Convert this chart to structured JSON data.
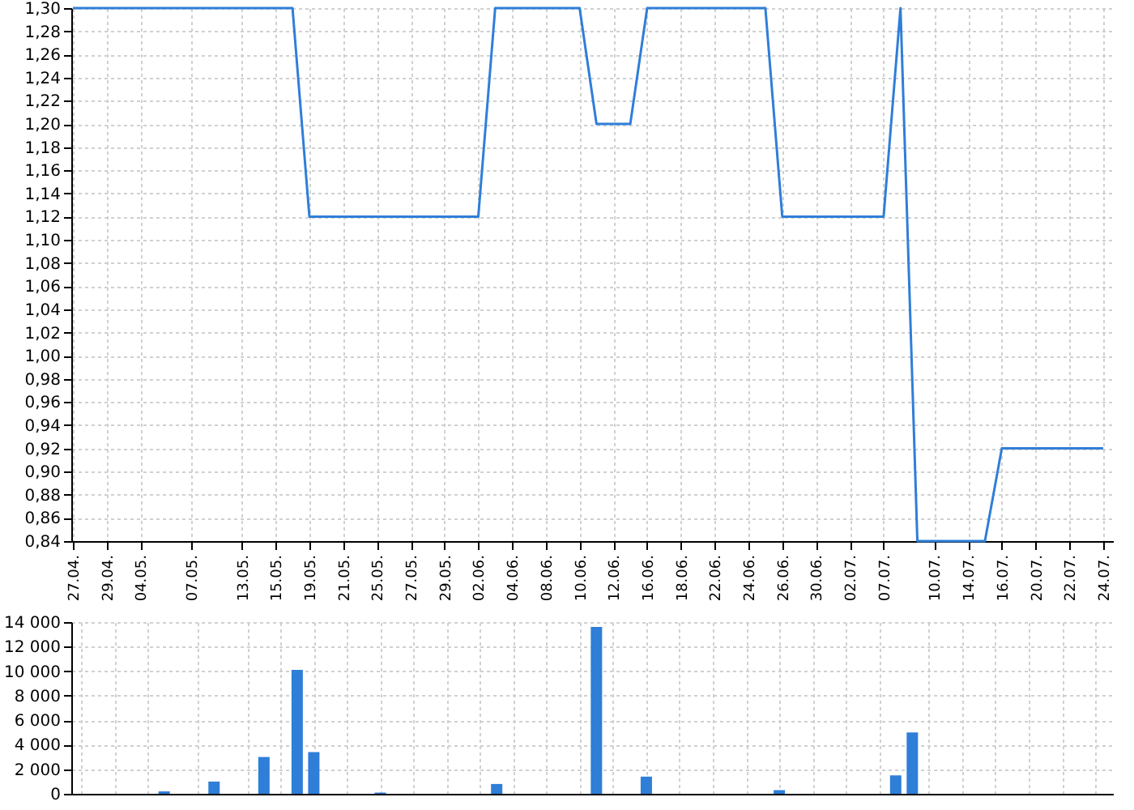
{
  "chart_data": [
    {
      "type": "line",
      "categories": [
        "27.04.",
        null,
        "29.04.",
        null,
        "04.05.",
        null,
        null,
        "07.05.",
        null,
        null,
        "13.05.",
        null,
        "15.05.",
        null,
        "19.05.",
        null,
        "21.05.",
        null,
        "25.05.",
        null,
        "27.05.",
        null,
        "29.05.",
        null,
        "02.06.",
        null,
        "04.06.",
        null,
        "08.06.",
        null,
        "10.06.",
        null,
        "12.06.",
        null,
        "16.06.",
        null,
        "18.06.",
        null,
        "22.06.",
        null,
        "24.06.",
        null,
        "26.06.",
        null,
        "30.06.",
        null,
        "02.07.",
        null,
        "07.07.",
        null,
        null,
        "10.07.",
        null,
        "14.07.",
        null,
        "16.07.",
        null,
        "20.07.",
        null,
        "22.07.",
        null,
        "24.07."
      ],
      "series": [
        {
          "color": "#2f7ed8",
          "values": [
            1.3,
            1.3,
            1.3,
            1.3,
            1.3,
            1.3,
            1.3,
            1.3,
            1.3,
            1.3,
            1.3,
            1.3,
            1.3,
            1.3,
            1.12,
            1.12,
            1.12,
            1.12,
            1.12,
            1.12,
            1.12,
            1.12,
            1.12,
            1.12,
            1.12,
            1.3,
            1.3,
            1.3,
            1.3,
            1.3,
            1.3,
            1.2,
            1.2,
            1.2,
            1.3,
            1.3,
            1.3,
            1.3,
            1.3,
            1.3,
            1.3,
            1.3,
            1.12,
            1.12,
            1.12,
            1.12,
            1.12,
            1.12,
            1.12,
            1.3,
            0.84,
            0.84,
            0.84,
            0.84,
            0.84,
            0.92,
            0.92,
            0.92,
            0.92,
            0.92,
            0.92,
            0.92
          ]
        }
      ],
      "ylim": [
        0.84,
        1.3
      ],
      "yticks": [
        {
          "value": 0.84,
          "label": "0,84"
        },
        {
          "value": 0.86,
          "label": "0,86"
        },
        {
          "value": 0.88,
          "label": "0,88"
        },
        {
          "value": 0.9,
          "label": "0,90"
        },
        {
          "value": 0.92,
          "label": "0,92"
        },
        {
          "value": 0.94,
          "label": "0,94"
        },
        {
          "value": 0.96,
          "label": "0,96"
        },
        {
          "value": 0.98,
          "label": "0,98"
        },
        {
          "value": 1.0,
          "label": "1,00"
        },
        {
          "value": 1.02,
          "label": "1,02"
        },
        {
          "value": 1.04,
          "label": "1,04"
        },
        {
          "value": 1.06,
          "label": "1,06"
        },
        {
          "value": 1.08,
          "label": "1,08"
        },
        {
          "value": 1.1,
          "label": "1,10"
        },
        {
          "value": 1.12,
          "label": "1,12"
        },
        {
          "value": 1.14,
          "label": "1,14"
        },
        {
          "value": 1.16,
          "label": "1,16"
        },
        {
          "value": 1.18,
          "label": "1,18"
        },
        {
          "value": 1.2,
          "label": "1,20"
        },
        {
          "value": 1.22,
          "label": "1,22"
        },
        {
          "value": 1.24,
          "label": "1,24"
        },
        {
          "value": 1.26,
          "label": "1,26"
        },
        {
          "value": 1.28,
          "label": "1,28"
        },
        {
          "value": 1.3,
          "label": "1,30"
        }
      ],
      "grid": true,
      "marker": "none",
      "line_style": "solid"
    },
    {
      "type": "bar",
      "categories": [
        "27.04.",
        null,
        "29.04.",
        null,
        "04.05.",
        null,
        null,
        "07.05.",
        null,
        null,
        "13.05.",
        null,
        "15.05.",
        null,
        "19.05.",
        null,
        "21.05.",
        null,
        "25.05.",
        null,
        "27.05.",
        null,
        "29.05.",
        null,
        "02.06.",
        null,
        "04.06.",
        null,
        "08.06.",
        null,
        "10.06.",
        null,
        "12.06.",
        null,
        "16.06.",
        null,
        "18.06.",
        null,
        "22.06.",
        null,
        "24.06.",
        null,
        "26.06.",
        null,
        "30.06.",
        null,
        "02.07.",
        null,
        "07.07.",
        null,
        null,
        "10.07.",
        null,
        "14.07.",
        null,
        "16.07.",
        null,
        "20.07.",
        null,
        "22.07.",
        null,
        "24.07."
      ],
      "series": [
        {
          "color": "#2f7ed8",
          "values": [
            null,
            null,
            null,
            null,
            null,
            200,
            null,
            null,
            1000,
            null,
            null,
            3000,
            null,
            10100,
            3400,
            null,
            null,
            null,
            100,
            null,
            null,
            null,
            null,
            null,
            null,
            800,
            null,
            null,
            null,
            null,
            null,
            13600,
            null,
            null,
            1400,
            null,
            null,
            null,
            null,
            null,
            null,
            null,
            300,
            null,
            null,
            null,
            null,
            null,
            null,
            1500,
            5000,
            null,
            null,
            null,
            null,
            null,
            null,
            null,
            null,
            null,
            null,
            null
          ]
        }
      ],
      "ylim": [
        0,
        14000
      ],
      "yticks": [
        0,
        {
          "value": 2000,
          "label": "2 000"
        },
        {
          "value": 4000,
          "label": "4 000"
        },
        {
          "value": 6000,
          "label": "6 000"
        },
        {
          "value": 8000,
          "label": "8 000"
        },
        {
          "value": 10000,
          "label": "10 000"
        },
        {
          "value": 12000,
          "label": "12 000"
        },
        {
          "value": 14000,
          "label": "14 000"
        }
      ],
      "grid": true,
      "tick_labels": "y"
    }
  ]
}
